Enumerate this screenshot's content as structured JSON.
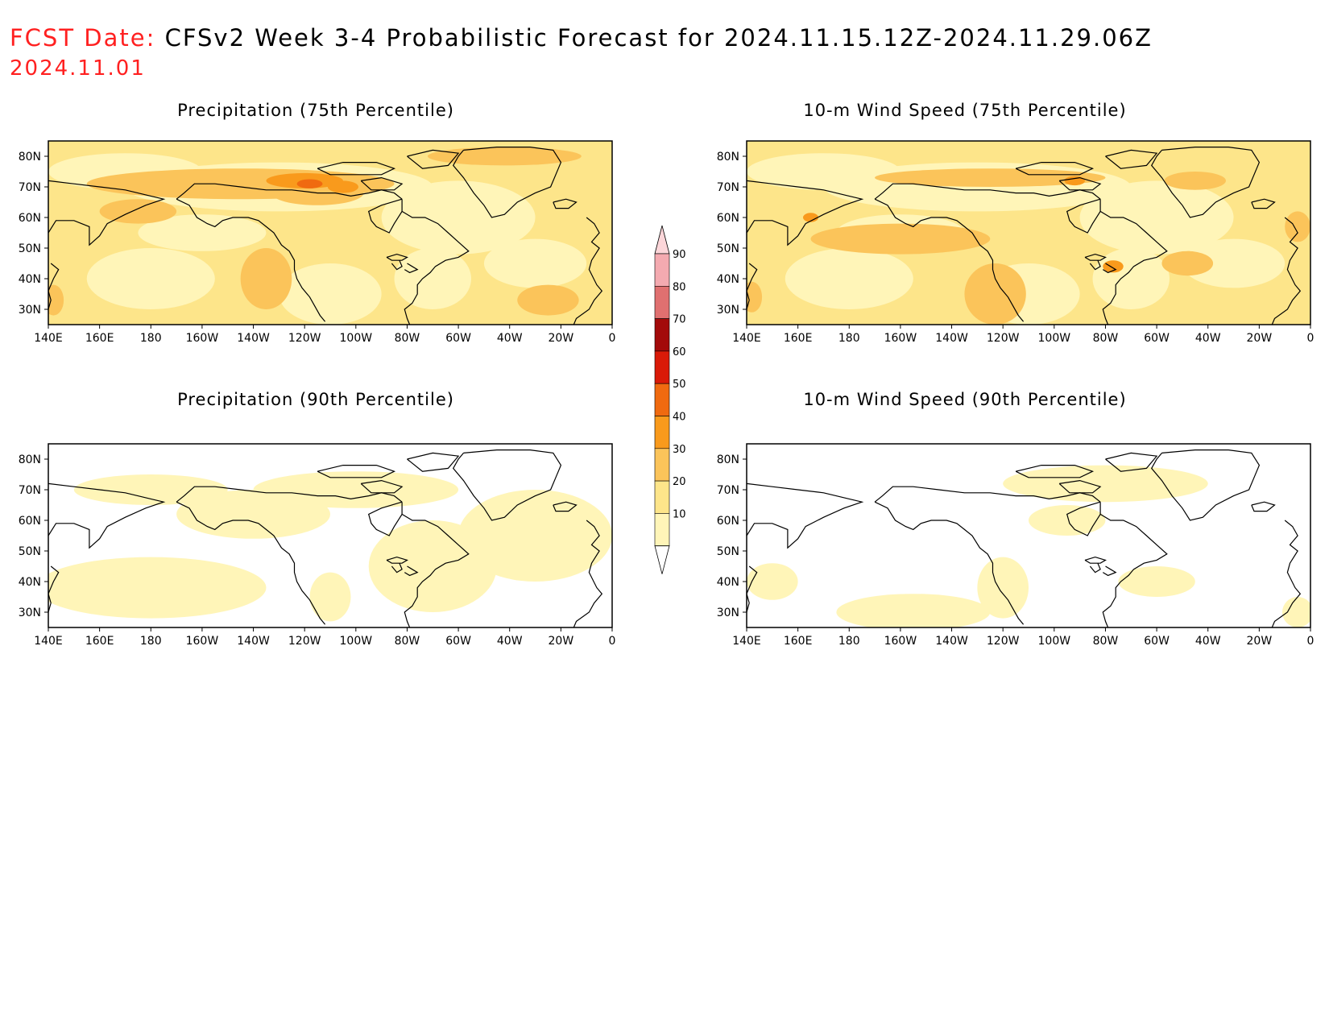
{
  "header": {
    "label": "FCST Date:",
    "title": "CFSv2 Week 3-4 Probabilistic Forecast for 2024.11.15.12Z-2024.11.29.06Z",
    "date": "2024.11.01"
  },
  "panels": [
    {
      "title": "Precipitation (75th Percentile)",
      "intensity": "high"
    },
    {
      "title": "10-m Wind Speed (75th Percentile)",
      "intensity": "high"
    },
    {
      "title": "Precipitation (90th Percentile)",
      "intensity": "low"
    },
    {
      "title": "10-m Wind Speed (90th Percentile)",
      "intensity": "low"
    }
  ],
  "axes": {
    "lon_labels": [
      "140E",
      "160E",
      "180",
      "160W",
      "140W",
      "120W",
      "100W",
      "80W",
      "60W",
      "40W",
      "20W",
      "0"
    ],
    "lat_labels": [
      "80N",
      "70N",
      "60N",
      "50N",
      "40N",
      "30N"
    ]
  },
  "colorbar": {
    "levels": [
      "10",
      "20",
      "30",
      "40",
      "50",
      "60",
      "70",
      "80",
      "90"
    ],
    "colors": [
      "#fff5b8",
      "#fde58a",
      "#fbc45a",
      "#f99a1c",
      "#f06a10",
      "#d91a08",
      "#a30a0a",
      "#e07070",
      "#f4aab0",
      "#fcd6d9"
    ]
  }
}
